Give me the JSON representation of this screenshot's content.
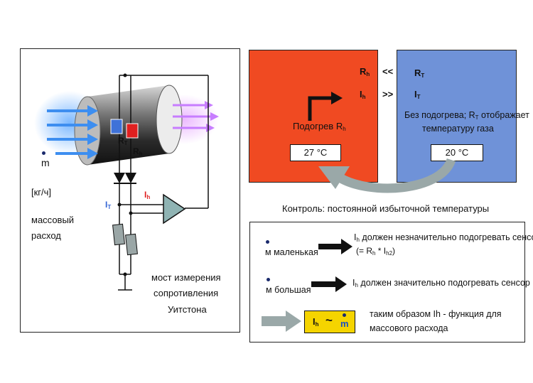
{
  "left": {
    "m": "m",
    "unit": "[кг/ч]",
    "mass_flow_1": "массовый",
    "mass_flow_2": "расход",
    "bridge_1": "мост  измерения",
    "bridge_2": "сопротивления",
    "bridge_3": "Уитстона",
    "R": "R",
    "sub_T": "T",
    "sub_h": "h",
    "I": "I"
  },
  "top": {
    "heated_label": "Подогрев R",
    "heated_sub": "h",
    "heated_temp": "27 °C",
    "Rh": "R",
    "Rh_sub": "h",
    "Ih": "I",
    "Ih_sub": "h",
    "lt": "<<",
    "gt": ">>",
    "RT": "R",
    "RT_sub": "T",
    "IT": "I",
    "IT_sub": "T",
    "unheated_1a": "Без подогрева; R",
    "unheated_1sub": "T",
    "unheated_1b": " отображает",
    "unheated_2": "температуру газа",
    "unheated_temp": "20 °C"
  },
  "control_caption": "Контроль: постоянной избыточной температуры",
  "bottom": {
    "small_label": "м маленькая",
    "small_text_1a": "I",
    "small_text_1sub": "h",
    "small_text_1b": " должен незначительно подогревать сенсор",
    "small_formula": "(= R",
    "small_formula_sub1": "h",
    "small_formula_mid": " * I",
    "small_formula_sub2": "h2",
    "small_formula_end": ")",
    "big_label": "м большая",
    "big_text_a": "I",
    "big_text_sub": "h",
    "big_text_b": " должен значительно подогревать сенсор",
    "result_box_I": "I",
    "result_box_sub": "h",
    "result_box_tilde": "~",
    "result_box_m": "m",
    "result_text_1": "таким образом Ih - функция  для",
    "result_text_2": "массового расхода"
  },
  "colors": {
    "heated": "#f04a22",
    "unheated": "#6f92d8",
    "yellow": "#f5d400",
    "arrow_gray": "#9aa8a8"
  }
}
